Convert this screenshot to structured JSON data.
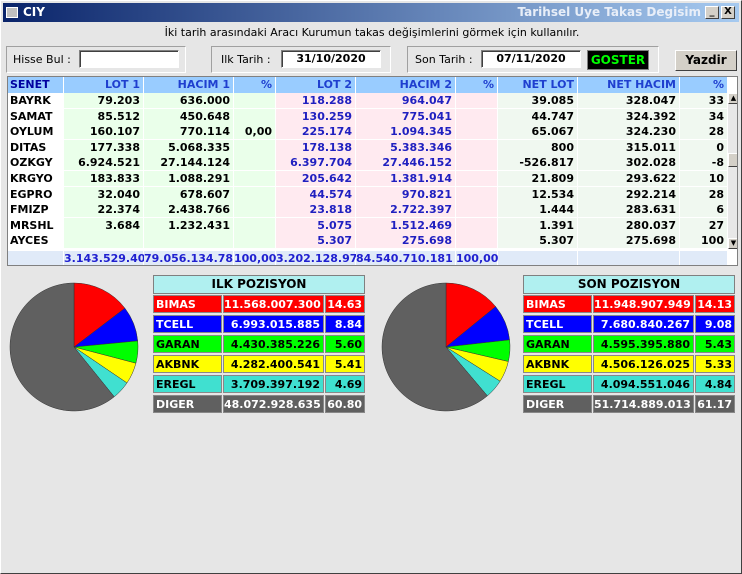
{
  "window": {
    "title": "CIY",
    "right_title": "Tarihsel Uye Takas Degisim",
    "min": "_",
    "close": "X"
  },
  "info_text": "İki tarih arasındaki  Aracı Kurumun takas değişimlerini görmek için kullanılır.",
  "filters": {
    "hisse_label": "Hisse Bul :",
    "hisse_value": "",
    "ilk_label": "Ilk Tarih :",
    "ilk_value": "31/10/2020",
    "son_label": "Son Tarih :",
    "son_value": "07/11/2020",
    "goster": "GOSTER",
    "yazdir": "Yazdir"
  },
  "table": {
    "headers": [
      "SENET",
      "LOT 1",
      "HACIM 1",
      "%",
      "LOT 2",
      "HACIM 2",
      "%",
      "NET LOT",
      "NET HACIM",
      "%"
    ],
    "rows": [
      [
        "BAYRK",
        "79.203",
        "636.000",
        "",
        "118.288",
        "964.047",
        "",
        "39.085",
        "328.047",
        "33"
      ],
      [
        "SAMAT",
        "85.512",
        "450.648",
        "",
        "130.259",
        "775.041",
        "",
        "44.747",
        "324.392",
        "34"
      ],
      [
        "OYLUM",
        "160.107",
        "770.114",
        "0,00",
        "225.174",
        "1.094.345",
        "",
        "65.067",
        "324.230",
        "28"
      ],
      [
        "DITAS",
        "177.338",
        "5.068.335",
        "",
        "178.138",
        "5.383.346",
        "",
        "800",
        "315.011",
        "0"
      ],
      [
        "OZKGY",
        "6.924.521",
        "27.144.124",
        "",
        "6.397.704",
        "27.446.152",
        "",
        "-526.817",
        "302.028",
        "-8"
      ],
      [
        "KRGYO",
        "183.833",
        "1.088.291",
        "",
        "205.642",
        "1.381.914",
        "",
        "21.809",
        "293.622",
        "10"
      ],
      [
        "EGPRO",
        "32.040",
        "678.607",
        "",
        "44.574",
        "970.821",
        "",
        "12.534",
        "292.214",
        "28"
      ],
      [
        "FMIZP",
        "22.374",
        "2.438.766",
        "",
        "23.818",
        "2.722.397",
        "",
        "1.444",
        "283.631",
        "6"
      ],
      [
        "MRSHL",
        "3.684",
        "1.232.431",
        "",
        "5.075",
        "1.512.469",
        "",
        "1.391",
        "280.037",
        "27"
      ],
      [
        "AYCES",
        "",
        "",
        "",
        "5.307",
        "275.698",
        "",
        "5.307",
        "275.698",
        "100"
      ]
    ],
    "totals": [
      "",
      "3.143.529.401",
      "79.056.134.782",
      "100,00",
      "3.202.128.979",
      "84.540.710.181",
      "100,00",
      "",
      "",
      ""
    ]
  },
  "ilk_pozisyon": {
    "title": "ILK POZISYON",
    "rows": [
      {
        "name": "BIMAS",
        "value": "11.568.007.300",
        "pct": "14.63",
        "color": "#ff0000",
        "fg": "#ffffff",
        "pct_num": 14.63
      },
      {
        "name": "TCELL",
        "value": "6.993.015.885",
        "pct": "8.84",
        "color": "#0000ff",
        "fg": "#ffffff",
        "pct_num": 8.84
      },
      {
        "name": "GARAN",
        "value": "4.430.385.226",
        "pct": "5.60",
        "color": "#00ff00",
        "fg": "#000000",
        "pct_num": 5.6
      },
      {
        "name": "AKBNK",
        "value": "4.282.400.541",
        "pct": "5.41",
        "color": "#ffff00",
        "fg": "#000000",
        "pct_num": 5.41
      },
      {
        "name": "EREGL",
        "value": "3.709.397.192",
        "pct": "4.69",
        "color": "#40e0d0",
        "fg": "#000000",
        "pct_num": 4.69
      },
      {
        "name": "DIGER",
        "value": "48.072.928.635",
        "pct": "60.80",
        "color": "#606060",
        "fg": "#ffffff",
        "pct_num": 60.8
      }
    ]
  },
  "son_pozisyon": {
    "title": "SON POZISYON",
    "rows": [
      {
        "name": "BIMAS",
        "value": "11.948.907.949",
        "pct": "14.13",
        "color": "#ff0000",
        "fg": "#ffffff",
        "pct_num": 14.13
      },
      {
        "name": "TCELL",
        "value": "7.680.840.267",
        "pct": "9.08",
        "color": "#0000ff",
        "fg": "#ffffff",
        "pct_num": 9.08
      },
      {
        "name": "GARAN",
        "value": "4.595.395.880",
        "pct": "5.43",
        "color": "#00ff00",
        "fg": "#000000",
        "pct_num": 5.43
      },
      {
        "name": "AKBNK",
        "value": "4.506.126.025",
        "pct": "5.33",
        "color": "#ffff00",
        "fg": "#000000",
        "pct_num": 5.33
      },
      {
        "name": "EREGL",
        "value": "4.094.551.046",
        "pct": "4.84",
        "color": "#40e0d0",
        "fg": "#000000",
        "pct_num": 4.84
      },
      {
        "name": "DIGER",
        "value": "51.714.889.013",
        "pct": "61.17",
        "color": "#606060",
        "fg": "#ffffff",
        "pct_num": 61.17
      }
    ]
  }
}
